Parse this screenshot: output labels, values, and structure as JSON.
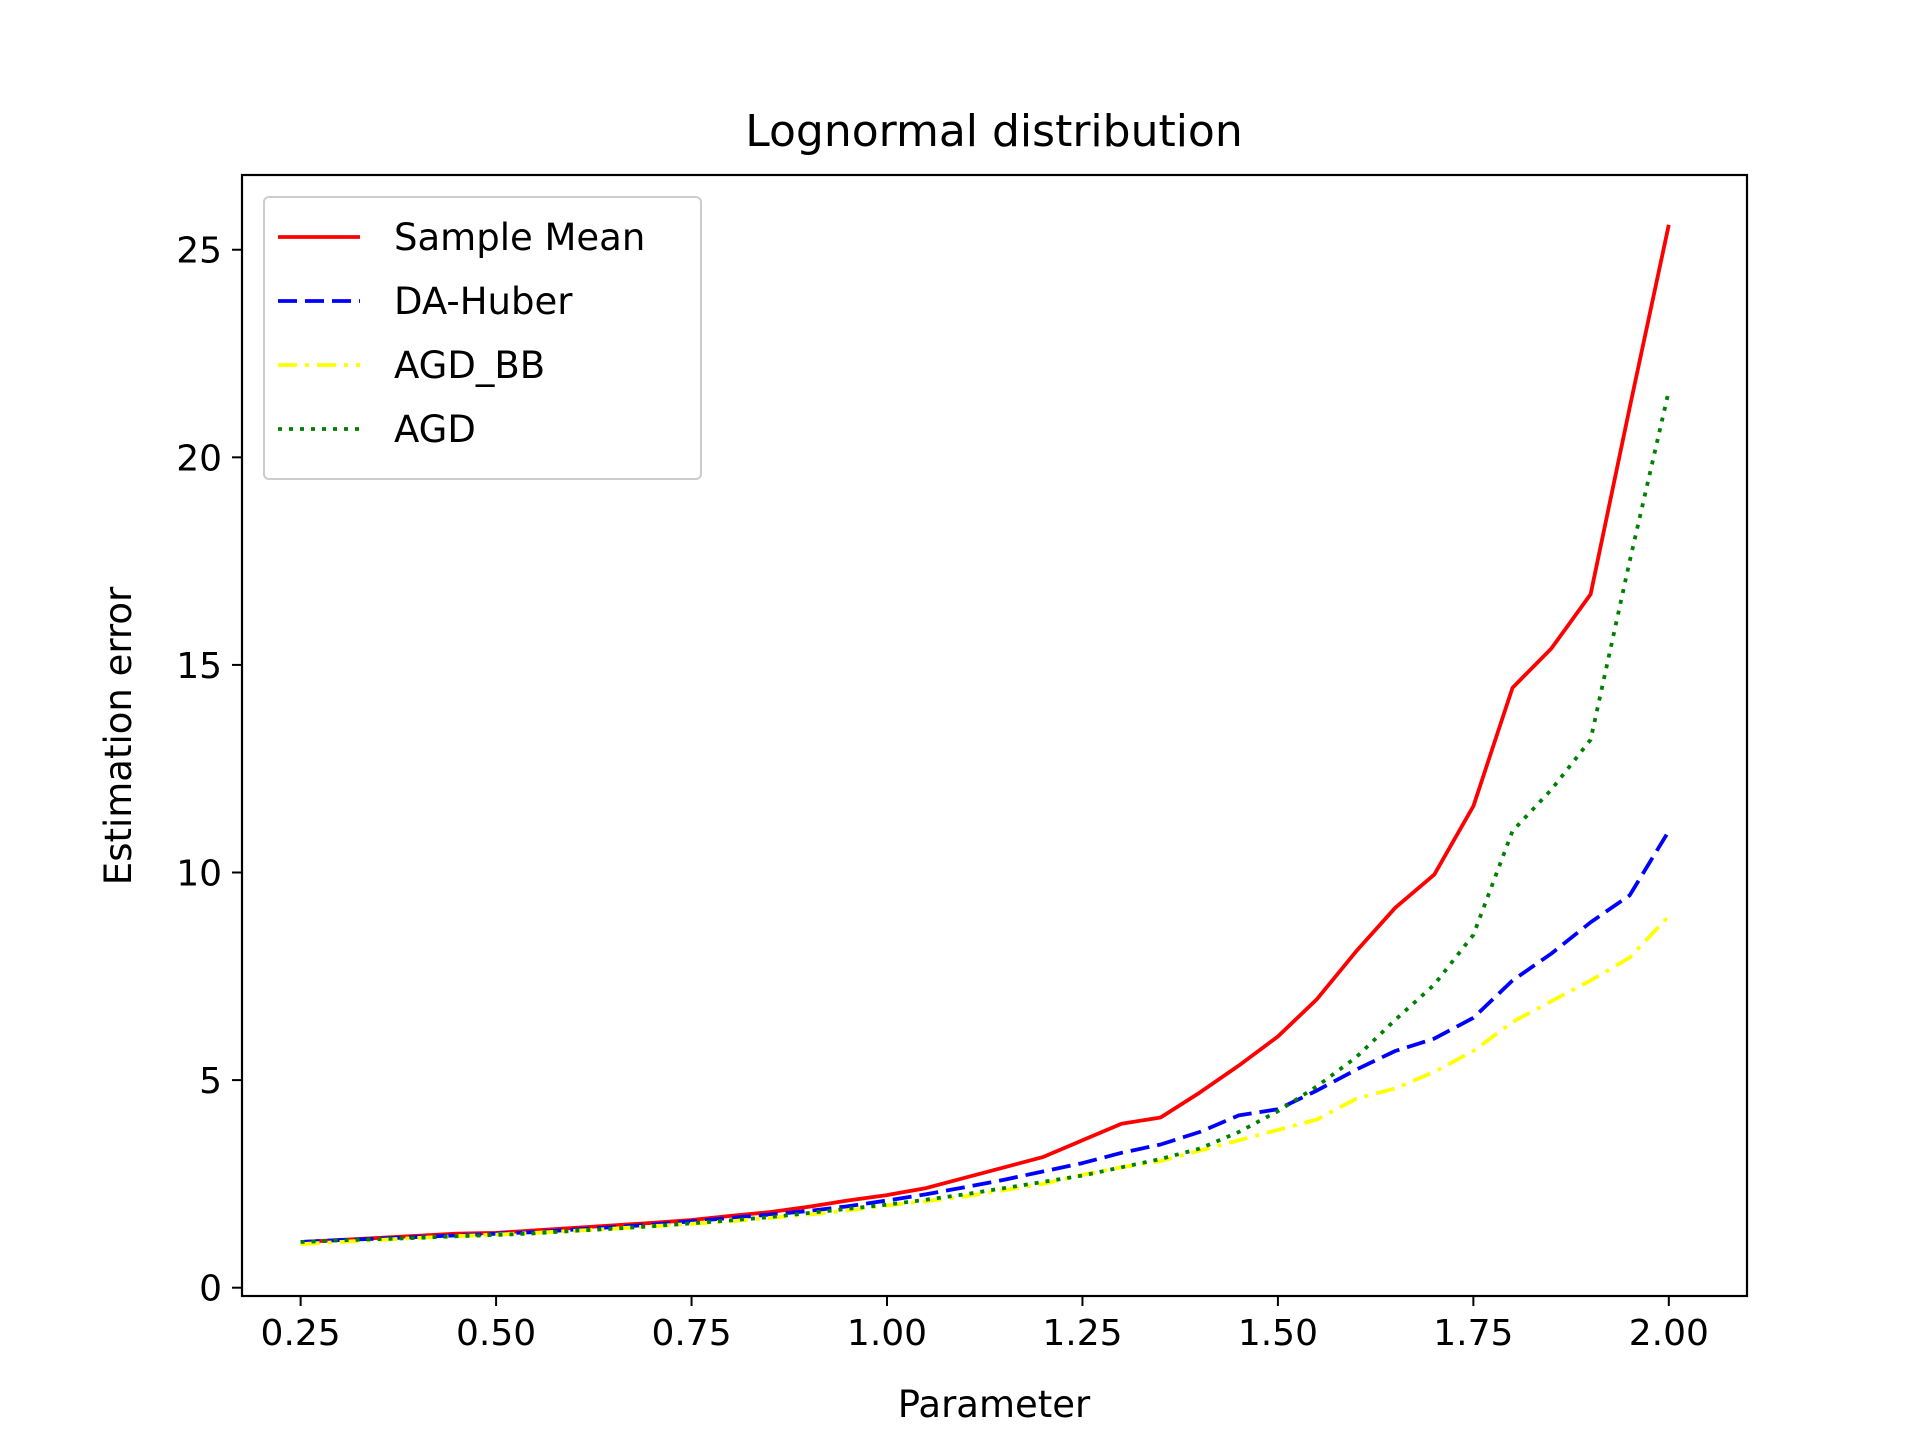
{
  "chart_data": {
    "type": "line",
    "title": "Lognormal distribution",
    "xlabel": "Parameter",
    "ylabel": "Estimation error",
    "xlim": [
      0.175,
      2.1
    ],
    "ylim": [
      -0.2,
      26.8
    ],
    "xticks": [
      0.25,
      0.5,
      0.75,
      1.0,
      1.25,
      1.5,
      1.75,
      2.0
    ],
    "xtick_labels": [
      "0.25",
      "0.50",
      "0.75",
      "1.00",
      "1.25",
      "1.50",
      "1.75",
      "2.00"
    ],
    "yticks": [
      0,
      5,
      10,
      15,
      20,
      25
    ],
    "ytick_labels": [
      "0",
      "5",
      "10",
      "15",
      "20",
      "25"
    ],
    "grid": false,
    "legend_position": "top-left",
    "x": [
      0.25,
      0.3,
      0.35,
      0.4,
      0.45,
      0.5,
      0.55,
      0.6,
      0.65,
      0.7,
      0.75,
      0.8,
      0.85,
      0.9,
      0.95,
      1.0,
      1.05,
      1.1,
      1.15,
      1.2,
      1.25,
      1.3,
      1.35,
      1.4,
      1.45,
      1.5,
      1.55,
      1.6,
      1.65,
      1.7,
      1.75,
      1.8,
      1.85,
      1.9,
      1.95,
      2.0
    ],
    "series": [
      {
        "name": "Sample Mean",
        "color": "#ff0000",
        "style": "solid",
        "values": [
          1.1,
          1.15,
          1.2,
          1.25,
          1.3,
          1.32,
          1.38,
          1.44,
          1.5,
          1.56,
          1.63,
          1.73,
          1.82,
          1.95,
          2.1,
          2.23,
          2.4,
          2.65,
          2.9,
          3.15,
          3.55,
          3.95,
          4.1,
          4.7,
          5.35,
          6.05,
          6.95,
          8.1,
          9.15,
          9.95,
          11.6,
          14.45,
          15.4,
          16.7,
          21.2,
          25.6
        ]
      },
      {
        "name": "DA-Huber",
        "color": "#0000ff",
        "style": "dashed",
        "values": [
          1.1,
          1.15,
          1.18,
          1.22,
          1.26,
          1.3,
          1.34,
          1.4,
          1.46,
          1.52,
          1.6,
          1.68,
          1.76,
          1.85,
          1.96,
          2.1,
          2.25,
          2.42,
          2.6,
          2.8,
          3.0,
          3.25,
          3.45,
          3.75,
          4.15,
          4.3,
          4.75,
          5.25,
          5.7,
          6.0,
          6.5,
          7.4,
          8.05,
          8.8,
          9.45,
          11.0
        ]
      },
      {
        "name": "AGD_BB",
        "color": "#ffff00",
        "style": "dashdot",
        "values": [
          1.05,
          1.1,
          1.15,
          1.2,
          1.24,
          1.28,
          1.32,
          1.37,
          1.42,
          1.48,
          1.54,
          1.6,
          1.68,
          1.76,
          1.86,
          1.98,
          2.08,
          2.2,
          2.35,
          2.5,
          2.72,
          2.9,
          3.05,
          3.3,
          3.55,
          3.8,
          4.05,
          4.55,
          4.8,
          5.2,
          5.7,
          6.4,
          6.9,
          7.4,
          7.95,
          8.95
        ]
      },
      {
        "name": "AGD",
        "color": "#008000",
        "style": "dotted",
        "values": [
          1.1,
          1.14,
          1.17,
          1.2,
          1.24,
          1.27,
          1.31,
          1.37,
          1.42,
          1.48,
          1.55,
          1.62,
          1.7,
          1.8,
          1.9,
          2.0,
          2.12,
          2.25,
          2.4,
          2.55,
          2.7,
          2.9,
          3.1,
          3.35,
          3.75,
          4.25,
          4.85,
          5.55,
          6.45,
          7.3,
          8.5,
          11.0,
          12.0,
          13.2,
          17.5,
          21.6
        ]
      }
    ]
  }
}
